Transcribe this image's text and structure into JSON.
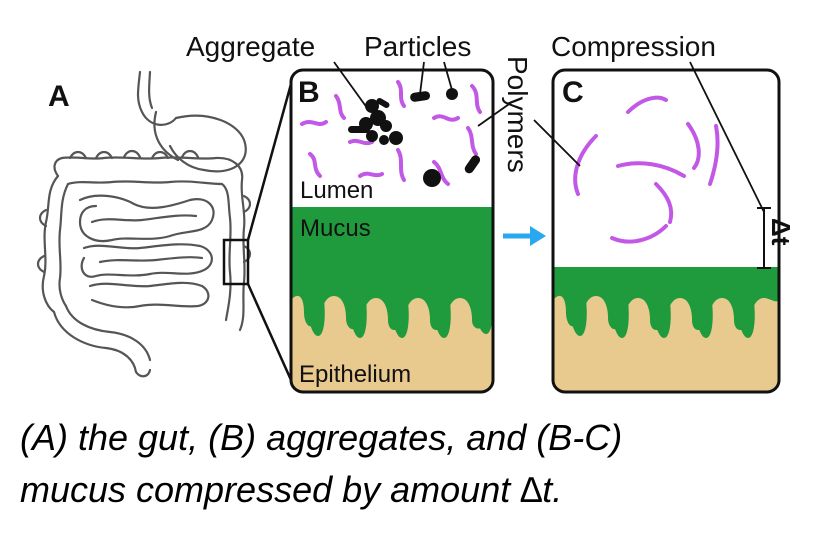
{
  "labels": {
    "panel_a": "A",
    "panel_b": "B",
    "panel_c": "C",
    "aggregate": "Aggregate",
    "particles": "Particles",
    "polymers": "Polymers",
    "compression": "Compression",
    "lumen": "Lumen",
    "mucus": "Mucus",
    "epithelium": "Epithelium",
    "delta_t": "Δt"
  },
  "caption": {
    "line1": "(A) the gut, (B) aggregates, and (B-C)",
    "line2": "mucus compressed by amount ∆t."
  },
  "colors": {
    "mucus": "#1f9a3c",
    "epithelium": "#e8c98e",
    "polymer": "#c259e6",
    "arrow": "#2aa8ef",
    "gut_outline": "#555555"
  },
  "icons": {
    "gut": "gut-illustration-icon",
    "arrow": "right-arrow-icon"
  }
}
